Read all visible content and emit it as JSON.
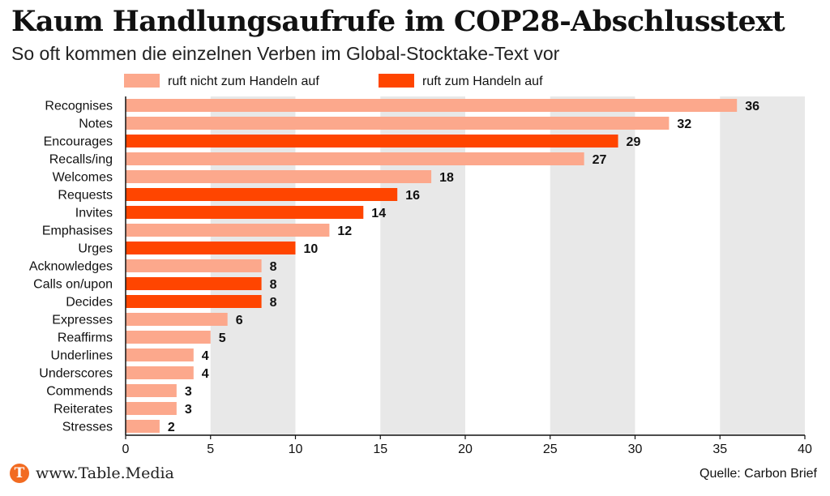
{
  "title": "Kaum Handlungsaufrufe im COP28-Abschlusstext",
  "subtitle": "So oft kommen die einzelnen Verben im Global-Stocktake-Text vor",
  "footer": {
    "logo_letter": "T",
    "site": "www.Table.Media",
    "source": "Quelle: Carbon Brief"
  },
  "colors": {
    "no_action": "#FCA88C",
    "action": "#FF4500",
    "band": "#E8E8E8"
  },
  "chart_data": {
    "type": "bar",
    "orientation": "horizontal",
    "categories": [
      "Recognises",
      "Notes",
      "Encourages",
      "Recalls/ing",
      "Welcomes",
      "Requests",
      "Invites",
      "Emphasises",
      "Urges",
      "Acknowledges",
      "Calls on/upon",
      "Decides",
      "Expresses",
      "Reaffirms",
      "Underlines",
      "Underscores",
      "Commends",
      "Reiterates",
      "Stresses"
    ],
    "values": [
      36,
      32,
      29,
      27,
      18,
      16,
      14,
      12,
      10,
      8,
      8,
      8,
      6,
      5,
      4,
      4,
      3,
      3,
      2
    ],
    "group": [
      "no_action",
      "no_action",
      "action",
      "no_action",
      "no_action",
      "action",
      "action",
      "no_action",
      "action",
      "no_action",
      "action",
      "action",
      "no_action",
      "no_action",
      "no_action",
      "no_action",
      "no_action",
      "no_action",
      "no_action"
    ],
    "legend": [
      {
        "key": "no_action",
        "label": "ruft nicht zum Handeln auf"
      },
      {
        "key": "action",
        "label": "ruft zum Handeln auf"
      }
    ],
    "legend_position": "top",
    "xlim": [
      0,
      40
    ],
    "xticks": [
      0,
      5,
      10,
      15,
      20,
      25,
      30,
      35,
      40
    ],
    "grid": "alternating vertical bands"
  }
}
